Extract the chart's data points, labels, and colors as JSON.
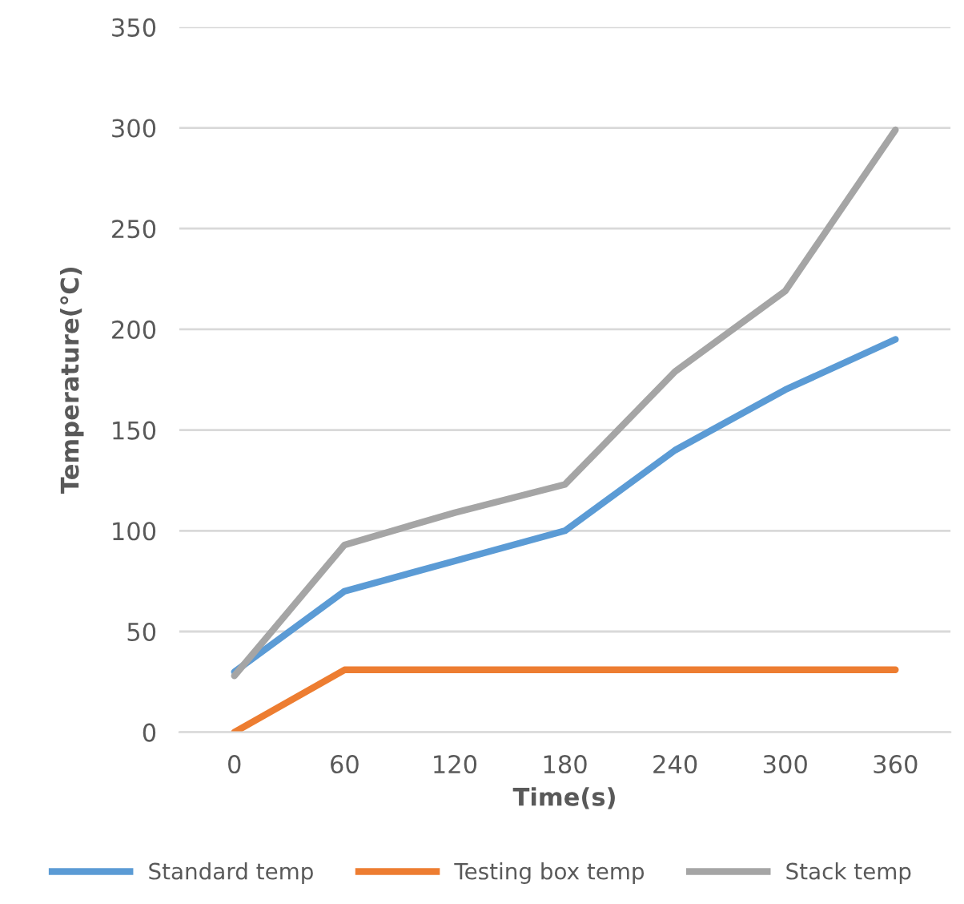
{
  "chart_data": {
    "type": "line",
    "xlabel": "Time(s)",
    "ylabel": "Temperature(℃)",
    "categories": [
      "0",
      "60",
      "120",
      "180",
      "240",
      "300",
      "360"
    ],
    "series": [
      {
        "name": "Standard temp",
        "color": "#5b9bd5",
        "values": [
          30,
          70,
          85,
          100,
          140,
          170,
          195
        ]
      },
      {
        "name": "Testing box temp",
        "color": "#ed7d31",
        "values": [
          0,
          31,
          31,
          31,
          31,
          31,
          31
        ]
      },
      {
        "name": "Stack temp",
        "color": "#a5a5a5",
        "values": [
          28,
          93,
          109,
          123,
          179,
          219,
          299
        ]
      }
    ],
    "ylim": [
      0,
      350
    ],
    "yticks": [
      0,
      50,
      100,
      150,
      200,
      250,
      300,
      350
    ],
    "grid": "y",
    "legend": "bottom",
    "marker": "none",
    "line_style": "solid"
  }
}
